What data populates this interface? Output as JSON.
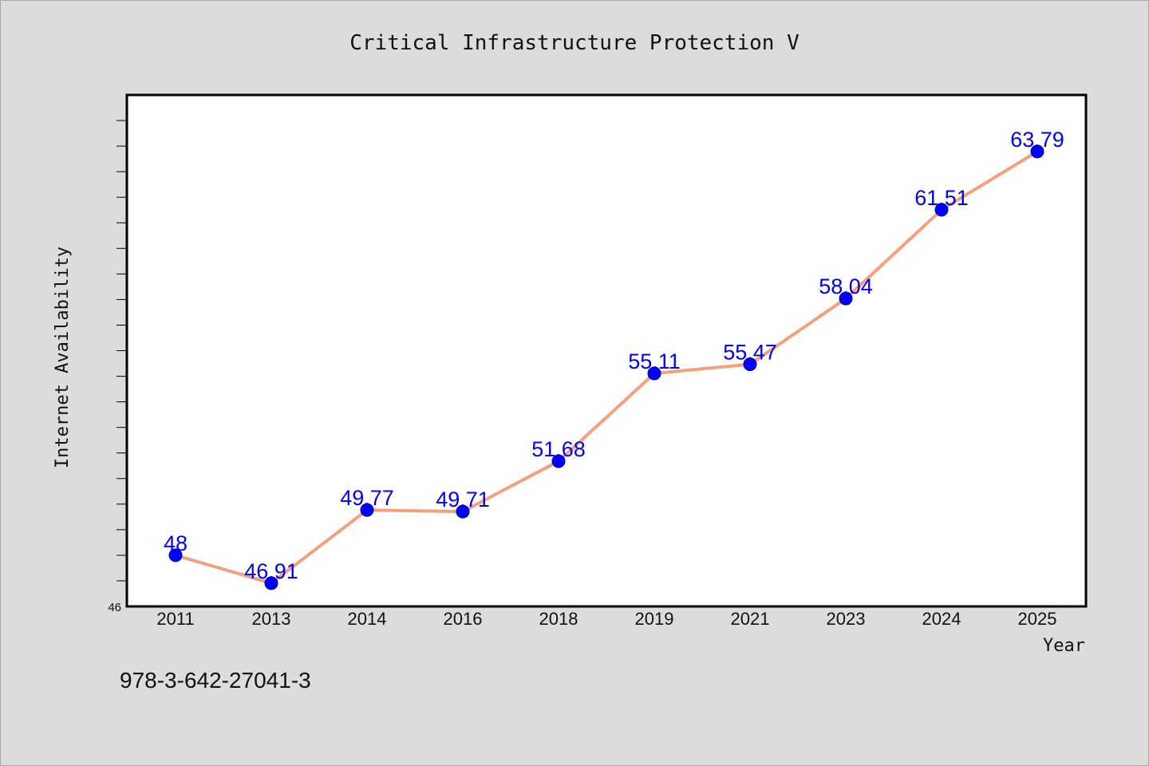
{
  "chart_data": {
    "type": "line",
    "title": "Critical Infrastructure Protection V",
    "xlabel": "Year",
    "ylabel": "Internet Availability",
    "categories": [
      "2011",
      "2013",
      "2014",
      "2016",
      "2018",
      "2019",
      "2021",
      "2023",
      "2024",
      "2025"
    ],
    "series": [
      {
        "values": [
          48,
          46.91,
          49.77,
          49.71,
          51.68,
          55.11,
          55.47,
          58.04,
          61.51,
          63.79
        ],
        "labels": [
          "48",
          "46.91",
          "49.77",
          "49.71",
          "51.68",
          "55.11",
          "55.47",
          "58.04",
          "61.51",
          "63.79"
        ]
      }
    ],
    "ylim": [
      46,
      66
    ],
    "y_tick_labels": [
      "46"
    ],
    "grid": false,
    "line_color": "#f4a07e",
    "marker_color": "#0000ff"
  },
  "footer": {
    "isbn": "978-3-642-27041-3"
  }
}
